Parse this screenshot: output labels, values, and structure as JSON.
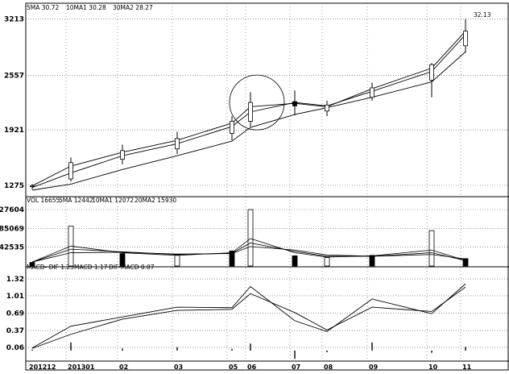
{
  "chart_data": [
    {
      "type": "candlestick",
      "panel": "price",
      "legend": [
        "5MA 30.72",
        "10MA1 30.28",
        "30MA2 28.27"
      ],
      "yticks": [
        "3213",
        "2557",
        "1921",
        "1275"
      ],
      "ylim": [
        12.0,
        33.2
      ],
      "annotation": "32.13",
      "x": [
        "201212",
        "201301",
        "02",
        "03",
        "05",
        "06",
        "07",
        "08",
        "09",
        "10",
        "11"
      ],
      "candles": [
        {
          "x": "201212",
          "open": 12.6,
          "high": 12.9,
          "low": 12.3,
          "close": 12.7
        },
        {
          "x": "201301",
          "open": 13.5,
          "high": 16.0,
          "low": 13.2,
          "close": 15.4
        },
        {
          "x": "02",
          "open": 15.8,
          "high": 17.5,
          "low": 15.2,
          "close": 16.8
        },
        {
          "x": "03",
          "open": 17.0,
          "high": 19.0,
          "low": 16.4,
          "close": 18.2
        },
        {
          "x": "05",
          "open": 18.8,
          "high": 20.8,
          "low": 18.0,
          "close": 20.2
        },
        {
          "x": "06",
          "open": 20.2,
          "high": 23.6,
          "low": 19.6,
          "close": 22.4
        },
        {
          "x": "07",
          "open": 22.5,
          "high": 23.8,
          "low": 20.9,
          "close": 22.0
        },
        {
          "x": "08",
          "open": 21.4,
          "high": 22.6,
          "low": 20.8,
          "close": 22.1
        },
        {
          "x": "09",
          "open": 23.0,
          "high": 24.7,
          "low": 22.6,
          "close": 24.1
        },
        {
          "x": "10",
          "open": 25.0,
          "high": 27.0,
          "low": 23.0,
          "close": 26.8
        },
        {
          "x": "11",
          "open": 29.0,
          "high": 32.1,
          "low": 28.2,
          "close": 30.7
        }
      ],
      "series": [
        {
          "name": "5MA",
          "values": [
            12.7,
            15.0,
            16.6,
            18.0,
            20.0,
            21.9,
            22.3,
            21.9,
            24.0,
            26.4,
            30.7
          ]
        },
        {
          "name": "10MA1",
          "values": [
            12.5,
            14.2,
            16.2,
            17.6,
            19.6,
            21.3,
            22.4,
            22.0,
            23.7,
            26.0,
            30.3
          ]
        },
        {
          "name": "30MA2",
          "values": [
            12.2,
            12.9,
            14.6,
            16.2,
            17.9,
            19.5,
            21.0,
            21.8,
            23.0,
            24.8,
            28.3
          ]
        }
      ],
      "colors": {
        "up": "#ffffff",
        "down": "#000000",
        "line": "#000000"
      }
    },
    {
      "type": "bar",
      "panel": "volume",
      "legend": [
        "VOL 16655",
        "5MA 12442",
        "10MA1 12072",
        "20MA2 15930"
      ],
      "yticks": [
        "127604",
        "85069",
        "42535"
      ],
      "ylim": [
        0,
        127604
      ],
      "categories": [
        "201212",
        "201301",
        "02",
        "03",
        "05",
        "06",
        "07",
        "08",
        "09",
        "10",
        "11"
      ],
      "values": [
        8000,
        90000,
        28000,
        25000,
        34000,
        127604,
        23000,
        19000,
        24000,
        80000,
        16655
      ],
      "series": [
        {
          "name": "5MA",
          "values": [
            9000,
            45000,
            30000,
            24000,
            30000,
            62000,
            30000,
            20000,
            23000,
            36000,
            12442
          ]
        },
        {
          "name": "10MA1",
          "values": [
            9000,
            38000,
            32000,
            26000,
            29000,
            52000,
            33000,
            22000,
            22000,
            30000,
            12072
          ]
        },
        {
          "name": "20MA2",
          "values": [
            9000,
            30000,
            31000,
            27000,
            28000,
            44000,
            36000,
            25000,
            22000,
            26000,
            15930
          ]
        }
      ]
    },
    {
      "type": "line",
      "panel": "macd",
      "legend": [
        "MACD- DIF 1.23",
        "MACD 1.17",
        "DIF-MACD 0.07"
      ],
      "yticks": [
        "1.32",
        "1.01",
        "0.69",
        "0.37",
        "0.06"
      ],
      "ylim": [
        -0.06,
        1.38
      ],
      "x": [
        "201212",
        "201301",
        "02",
        "03",
        "05",
        "06",
        "07",
        "08",
        "09",
        "10",
        "11"
      ],
      "series": [
        {
          "name": "DIF",
          "values": [
            0.05,
            0.45,
            0.62,
            0.8,
            0.79,
            1.18,
            0.55,
            0.35,
            0.95,
            0.68,
            1.23
          ]
        },
        {
          "name": "MACD",
          "values": [
            0.04,
            0.3,
            0.58,
            0.74,
            0.76,
            1.05,
            0.7,
            0.38,
            0.8,
            0.72,
            1.17
          ]
        },
        {
          "name": "DIF-MACD",
          "values": [
            0.02,
            0.15,
            0.04,
            0.06,
            0.03,
            0.13,
            -0.15,
            -0.03,
            0.15,
            -0.04,
            0.07
          ]
        }
      ]
    }
  ]
}
